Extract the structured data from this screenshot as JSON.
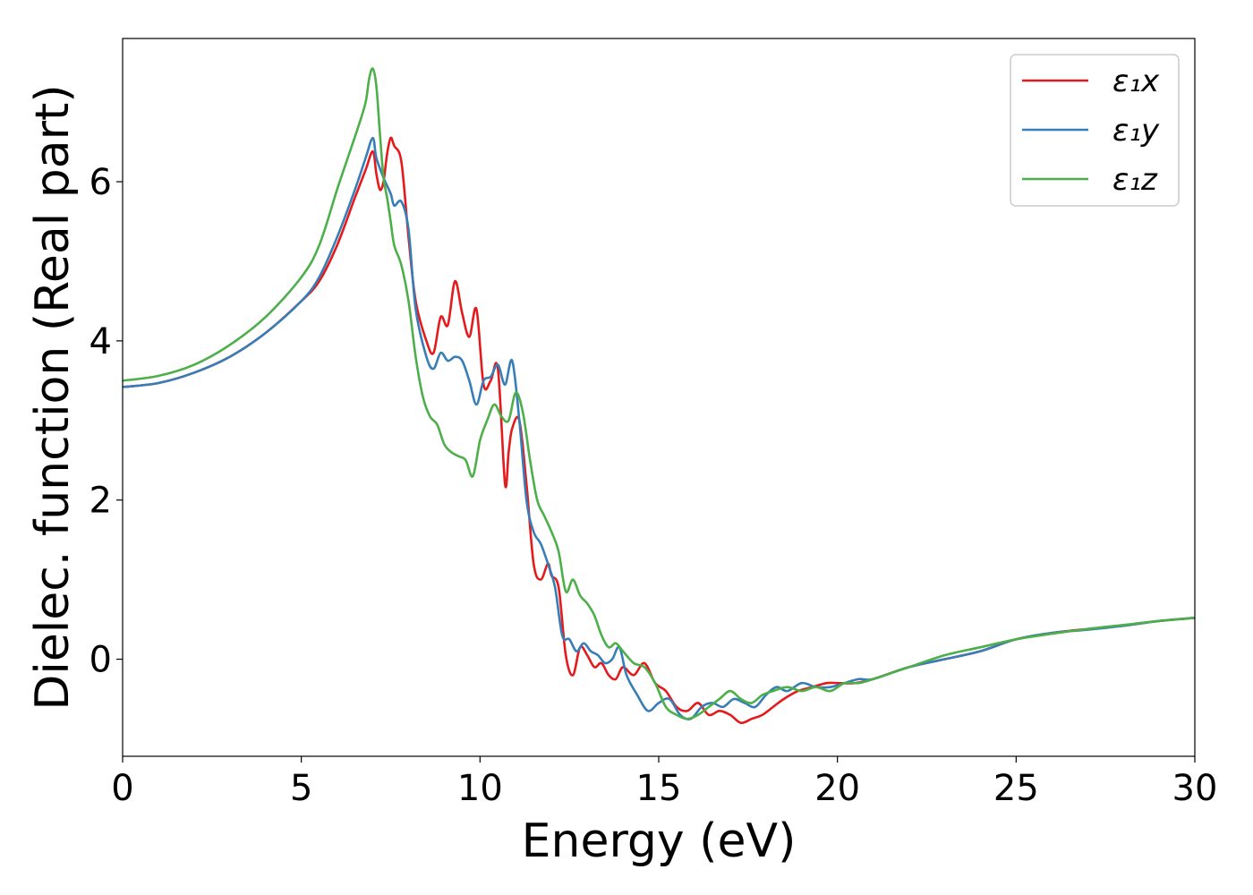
{
  "chart_data": {
    "type": "line",
    "title": "",
    "xlabel": "Energy (eV)",
    "ylabel": "Dielec. function (Real part)",
    "xlim": [
      0,
      30
    ],
    "ylim": [
      -1.22,
      7.8
    ],
    "xticks": [
      0,
      5,
      10,
      15,
      20,
      25,
      30
    ],
    "yticks": [
      0,
      2,
      4,
      6
    ],
    "grid": false,
    "legend_position": "top-right",
    "series": [
      {
        "name": "ε₁x",
        "color": "#e41a1c",
        "x": [
          0,
          1,
          2,
          3,
          4,
          5,
          5.5,
          6,
          6.5,
          6.8,
          7.0,
          7.1,
          7.2,
          7.3,
          7.4,
          7.5,
          7.6,
          7.8,
          8.0,
          8.2,
          8.5,
          8.7,
          8.9,
          9.1,
          9.3,
          9.5,
          9.7,
          9.9,
          10.1,
          10.3,
          10.5,
          10.7,
          10.8,
          10.9,
          11.1,
          11.3,
          11.5,
          11.7,
          11.9,
          12.0,
          12.2,
          12.4,
          12.6,
          12.8,
          13.0,
          13.2,
          13.4,
          13.6,
          13.8,
          14.0,
          14.3,
          14.6,
          14.9,
          15.2,
          15.5,
          15.8,
          16.1,
          16.4,
          16.7,
          17.0,
          17.3,
          17.6,
          17.9,
          18.2,
          18.5,
          18.9,
          19.3,
          19.7,
          20.0,
          20.5,
          21,
          22,
          23,
          24,
          25,
          26,
          27,
          28,
          29,
          30
        ],
        "values": [
          3.42,
          3.47,
          3.6,
          3.8,
          4.1,
          4.5,
          4.75,
          5.2,
          5.8,
          6.15,
          6.38,
          6.1,
          5.9,
          6.0,
          6.35,
          6.55,
          6.45,
          6.25,
          5.3,
          4.5,
          4.0,
          3.85,
          4.3,
          4.2,
          4.75,
          4.35,
          4.05,
          4.4,
          3.45,
          3.5,
          3.65,
          2.2,
          2.6,
          2.9,
          3.0,
          2.2,
          1.2,
          1.0,
          1.2,
          1.05,
          0.9,
          0.05,
          -0.2,
          0.15,
          0.05,
          -0.1,
          -0.05,
          -0.2,
          -0.25,
          -0.1,
          -0.2,
          -0.05,
          -0.3,
          -0.4,
          -0.6,
          -0.65,
          -0.55,
          -0.7,
          -0.65,
          -0.7,
          -0.8,
          -0.75,
          -0.7,
          -0.6,
          -0.5,
          -0.4,
          -0.35,
          -0.3,
          -0.3,
          -0.3,
          -0.25,
          -0.1,
          0.0,
          0.1,
          0.25,
          0.33,
          0.38,
          0.42,
          0.48,
          0.52
        ]
      },
      {
        "name": "ε₁y",
        "color": "#377eb8",
        "x": [
          0,
          1,
          2,
          3,
          4,
          5,
          5.5,
          6,
          6.5,
          6.8,
          7.0,
          7.1,
          7.3,
          7.5,
          7.6,
          7.8,
          8.0,
          8.2,
          8.5,
          8.7,
          8.9,
          9.1,
          9.3,
          9.5,
          9.7,
          9.9,
          10.1,
          10.3,
          10.5,
          10.7,
          10.9,
          11.1,
          11.3,
          11.5,
          11.7,
          11.9,
          12.1,
          12.3,
          12.5,
          12.7,
          12.9,
          13.1,
          13.3,
          13.5,
          13.7,
          13.9,
          14.1,
          14.4,
          14.7,
          15.0,
          15.3,
          15.6,
          15.9,
          16.2,
          16.5,
          16.8,
          17.1,
          17.4,
          17.7,
          18.0,
          18.3,
          18.6,
          19.0,
          19.4,
          19.8,
          20.2,
          20.6,
          21,
          22,
          23,
          24,
          25,
          26,
          27,
          28,
          29,
          30
        ],
        "values": [
          3.42,
          3.47,
          3.6,
          3.8,
          4.1,
          4.5,
          4.8,
          5.3,
          5.9,
          6.3,
          6.55,
          6.3,
          6.05,
          5.85,
          5.7,
          5.75,
          5.4,
          4.4,
          3.8,
          3.65,
          3.85,
          3.75,
          3.8,
          3.75,
          3.5,
          3.2,
          3.5,
          3.55,
          3.7,
          3.45,
          3.75,
          3.0,
          2.0,
          1.6,
          1.45,
          1.2,
          0.9,
          0.3,
          0.25,
          0.1,
          0.2,
          0.1,
          0.05,
          -0.05,
          0.0,
          0.15,
          -0.2,
          -0.45,
          -0.65,
          -0.55,
          -0.5,
          -0.7,
          -0.75,
          -0.6,
          -0.55,
          -0.6,
          -0.5,
          -0.55,
          -0.6,
          -0.45,
          -0.35,
          -0.4,
          -0.3,
          -0.35,
          -0.35,
          -0.3,
          -0.25,
          -0.25,
          -0.1,
          0.0,
          0.1,
          0.25,
          0.33,
          0.37,
          0.42,
          0.48,
          0.52
        ]
      },
      {
        "name": "ε₁z",
        "color": "#4daf4a",
        "x": [
          0,
          1,
          2,
          3,
          4,
          5,
          5.5,
          6,
          6.3,
          6.6,
          6.8,
          6.9,
          7.0,
          7.1,
          7.2,
          7.3,
          7.4,
          7.5,
          7.6,
          7.8,
          8.0,
          8.2,
          8.4,
          8.6,
          8.8,
          9.0,
          9.2,
          9.4,
          9.6,
          9.8,
          10.0,
          10.2,
          10.4,
          10.6,
          10.8,
          11.0,
          11.2,
          11.4,
          11.6,
          11.8,
          12.0,
          12.2,
          12.4,
          12.6,
          12.8,
          13.0,
          13.2,
          13.4,
          13.6,
          13.8,
          14.0,
          14.3,
          14.6,
          14.9,
          15.2,
          15.5,
          15.8,
          16.1,
          16.4,
          16.7,
          17.0,
          17.3,
          17.6,
          17.9,
          18.2,
          18.6,
          19.0,
          19.4,
          19.8,
          20.2,
          20.6,
          21,
          22,
          23,
          24,
          25,
          26,
          27,
          28,
          29,
          30
        ],
        "values": [
          3.5,
          3.56,
          3.7,
          3.95,
          4.3,
          4.8,
          5.2,
          5.9,
          6.3,
          6.7,
          7.0,
          7.3,
          7.42,
          7.2,
          6.6,
          6.05,
          5.8,
          5.5,
          5.2,
          4.95,
          4.5,
          3.8,
          3.3,
          3.05,
          2.95,
          2.7,
          2.6,
          2.55,
          2.5,
          2.3,
          2.75,
          3.0,
          3.2,
          3.05,
          3.0,
          3.35,
          3.1,
          2.5,
          2.0,
          1.8,
          1.6,
          1.35,
          0.85,
          1.0,
          0.8,
          0.7,
          0.55,
          0.3,
          0.15,
          0.2,
          0.1,
          -0.05,
          -0.1,
          -0.3,
          -0.6,
          -0.7,
          -0.75,
          -0.7,
          -0.6,
          -0.5,
          -0.4,
          -0.5,
          -0.55,
          -0.45,
          -0.4,
          -0.35,
          -0.4,
          -0.35,
          -0.4,
          -0.3,
          -0.3,
          -0.25,
          -0.1,
          0.05,
          0.15,
          0.25,
          0.32,
          0.38,
          0.43,
          0.48,
          0.52
        ]
      }
    ]
  }
}
